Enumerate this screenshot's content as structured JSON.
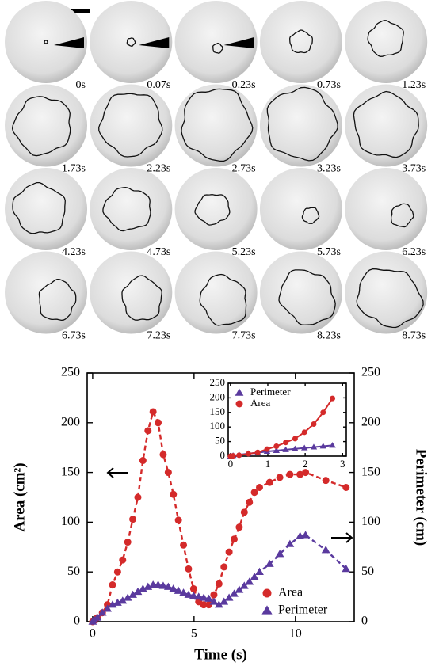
{
  "frames": [
    "0s",
    "0.07s",
    "0.23s",
    "0.73s",
    "1.23s",
    "1.73s",
    "2.23s",
    "2.73s",
    "3.23s",
    "3.73s",
    "4.23s",
    "4.73s",
    "5.23s",
    "5.73s",
    "6.23s",
    "6.73s",
    "7.23s",
    "7.73s",
    "8.23s",
    "8.73s"
  ],
  "chart_data": [
    {
      "type": "line",
      "xlabel": "Time (s)",
      "ylabel": "Area (cm²)",
      "y2label": "Perimeter (cm)",
      "x": [
        0,
        0.07,
        0.23,
        0.48,
        0.73,
        0.98,
        1.23,
        1.48,
        1.73,
        1.98,
        2.23,
        2.48,
        2.73,
        2.98,
        3.23,
        3.48,
        3.73,
        3.98,
        4.23,
        4.48,
        4.73,
        4.98,
        5.23,
        5.48,
        5.73,
        5.98,
        6.23,
        6.48,
        6.73,
        6.98,
        7.23,
        7.48,
        7.73,
        7.98,
        8.23,
        8.73,
        9.23,
        9.73,
        10.23,
        10.5,
        11.5,
        12.5
      ],
      "series": [
        {
          "name": "Area",
          "color": "#d42a2a",
          "marker": "circle",
          "values": [
            0,
            1,
            4,
            9,
            17,
            37,
            50,
            62,
            80,
            103,
            125,
            162,
            192,
            211,
            200,
            168,
            150,
            128,
            102,
            77,
            53,
            33,
            20,
            17,
            17,
            27,
            38,
            55,
            70,
            83,
            95,
            110,
            120,
            130,
            135,
            140,
            145,
            148,
            148,
            150,
            142,
            135
          ]
        },
        {
          "name": "Perimeter",
          "color": "#5a3a9e",
          "marker": "triangle",
          "axis": "y2",
          "values": [
            0,
            2,
            4,
            9,
            13,
            17,
            19,
            21,
            24,
            27,
            30,
            33,
            35,
            37,
            37,
            36,
            35,
            33,
            31,
            29,
            27,
            26,
            25,
            24,
            23,
            20,
            17,
            20,
            24,
            28,
            32,
            36,
            40,
            45,
            50,
            58,
            68,
            78,
            86,
            87,
            72,
            53
          ]
        }
      ],
      "linestyle": "dashed",
      "xlim": [
        -0.27,
        12.9
      ],
      "xticks": [
        0,
        5,
        10
      ],
      "ylim": [
        0,
        250
      ],
      "yticks": [
        0,
        50,
        100,
        150,
        200,
        250
      ],
      "y2lim": [
        0,
        250
      ],
      "y2ticks": [
        0,
        50,
        100,
        150,
        200,
        250
      ],
      "legend": "lower right",
      "grid": false
    },
    {
      "type": "line",
      "x": [
        0,
        0.07,
        0.23,
        0.48,
        0.73,
        0.98,
        1.23,
        1.48,
        1.73,
        1.98,
        2.23,
        2.48,
        2.73
      ],
      "series": [
        {
          "name": "Perimeter",
          "color": "#5a3a9e",
          "marker": "triangle",
          "values": [
            0,
            2,
            5,
            9,
            12,
            16,
            19,
            22,
            25,
            28,
            31,
            34,
            37
          ]
        },
        {
          "name": "Area",
          "color": "#d42a2a",
          "marker": "circle",
          "values": [
            0,
            1,
            3,
            8,
            13,
            24,
            34,
            47,
            60,
            82,
            110,
            150,
            198
          ]
        }
      ],
      "linestyle": "solid",
      "xlim": [
        -0.06,
        3.1
      ],
      "xticks": [
        0,
        1,
        2,
        3
      ],
      "ylim": [
        0,
        250
      ],
      "yticks": [
        0,
        50,
        100,
        150,
        200,
        250
      ],
      "legend": "upper left",
      "grid": false
    }
  ]
}
